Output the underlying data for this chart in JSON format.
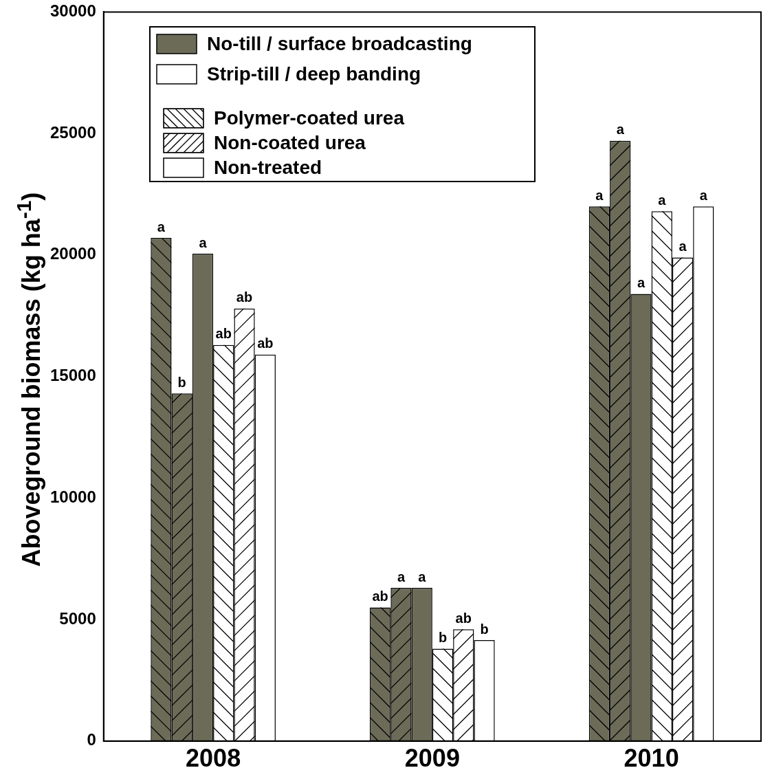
{
  "chart_data": {
    "type": "bar",
    "ylabel": "Aboveground biomass (kg ha$^{-1}$)",
    "categories": [
      "2008",
      "2009",
      "2010"
    ],
    "series": [
      {
        "color": "#6b6b58",
        "values": [
          20700,
          5500,
          22000
        ],
        "value_labels": [
          "a",
          "ab",
          "a"
        ]
      },
      {
        "color": "#6b6b58",
        "values": [
          14300,
          6300,
          24700
        ],
        "value_labels": [
          "b",
          "a",
          "a"
        ]
      },
      {
        "color": "#6b6b58",
        "values": [
          20050,
          6300,
          18400
        ],
        "value_labels": [
          "a",
          "a",
          "a"
        ]
      },
      {
        "color": "#ffffff",
        "values": [
          16300,
          3800,
          21800
        ],
        "value_labels": [
          "ab",
          "b",
          "a"
        ]
      },
      {
        "color": "#ffffff",
        "values": [
          17800,
          4600,
          19900
        ],
        "value_labels": [
          "ab",
          "ab",
          "a"
        ]
      },
      {
        "color": "#ffffff",
        "values": [
          15900,
          4150,
          22000
        ],
        "value_labels": [
          "ab",
          "b",
          "a"
        ]
      }
    ],
    "ylim": [
      0,
      30000
    ],
    "yticks": [
      0,
      5000,
      10000,
      15000,
      20000,
      25000,
      30000
    ],
    "grid": false,
    "annotations": [
      "No-till / surface broadcasting",
      "Strip-till / deep banding",
      "Polymer-coated urea",
      "Non-coated urea",
      "Non-treated"
    ]
  }
}
